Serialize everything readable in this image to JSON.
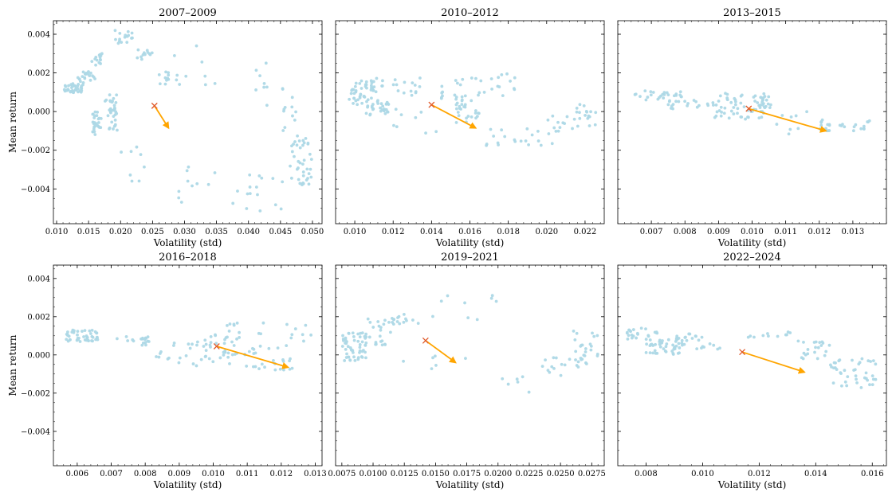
{
  "figure": {
    "ylabel_left": "Mean return",
    "colors": {
      "points": "#add8e6",
      "arrow": "#ffa500",
      "marker": "#e05a2b",
      "frame": "#000000"
    }
  },
  "chart_data": [
    {
      "type": "scatter",
      "title": "2007–2009",
      "xlabel": "Volatility (std)",
      "ylabel": "Mean return",
      "xlim": [
        0.0095,
        0.0515
      ],
      "ylim": [
        -0.0058,
        0.0047
      ],
      "xticks": [
        0.01,
        0.015,
        0.02,
        0.025,
        0.03,
        0.035,
        0.04,
        0.045,
        0.05
      ],
      "xticklabels": [
        "0.010",
        "0.015",
        "0.020",
        "0.025",
        "0.030",
        "0.035",
        "0.040",
        "0.045",
        "0.050"
      ],
      "yticks": [
        -0.004,
        -0.002,
        0.0,
        0.002,
        0.004
      ],
      "yticklabels": [
        "−0.004",
        "−0.002",
        "0.000",
        "0.002",
        "0.004"
      ],
      "clusters": [
        {
          "x": [
            0.011,
            0.013
          ],
          "y": [
            0.0009,
            0.0014
          ],
          "n": 22
        },
        {
          "x": [
            0.0125,
            0.0145
          ],
          "y": [
            0.001,
            0.0018
          ],
          "n": 18
        },
        {
          "x": [
            0.014,
            0.016
          ],
          "y": [
            0.0013,
            0.0021
          ],
          "n": 16
        },
        {
          "x": [
            0.0155,
            0.0175
          ],
          "y": [
            0.0024,
            0.003
          ],
          "n": 14
        },
        {
          "x": [
            0.0155,
            0.017
          ],
          "y": [
            -0.0012,
            0.0
          ],
          "n": 26
        },
        {
          "x": [
            0.0175,
            0.0195
          ],
          "y": [
            0.0003,
            0.0009
          ],
          "n": 12
        },
        {
          "x": [
            0.018,
            0.0195
          ],
          "y": [
            -0.001,
            0.0002
          ],
          "n": 24
        },
        {
          "x": [
            0.019,
            0.0225
          ],
          "y": [
            0.0035,
            0.0042
          ],
          "n": 16
        },
        {
          "x": [
            0.0225,
            0.025
          ],
          "y": [
            0.0027,
            0.0032
          ],
          "n": 12
        },
        {
          "x": [
            0.026,
            0.0275
          ],
          "y": [
            0.0013,
            0.0022
          ],
          "n": 10
        },
        {
          "x": [
            0.02,
            0.024
          ],
          "y": [
            -0.0037,
            -0.0018
          ],
          "n": 8
        },
        {
          "x": [
            0.028,
            0.036
          ],
          "y": [
            0.0012,
            0.0036
          ],
          "n": 10
        },
        {
          "x": [
            0.029,
            0.036
          ],
          "y": [
            -0.0048,
            -0.0023
          ],
          "n": 10
        },
        {
          "x": [
            0.037,
            0.046
          ],
          "y": [
            -0.0052,
            -0.0032
          ],
          "n": 16
        },
        {
          "x": [
            0.04,
            0.043
          ],
          "y": [
            0.0,
            0.0026
          ],
          "n": 8
        },
        {
          "x": [
            0.045,
            0.0475
          ],
          "y": [
            -0.001,
            0.0016
          ],
          "n": 12
        },
        {
          "x": [
            0.0465,
            0.05
          ],
          "y": [
            -0.0038,
            -0.0012
          ],
          "n": 40
        }
      ],
      "marker": {
        "x": 0.0253,
        "y": 0.0003
      },
      "arrow": {
        "from": [
          0.0253,
          0.0003
        ],
        "to": [
          0.0275,
          -0.00085
        ]
      }
    },
    {
      "type": "scatter",
      "title": "2010–2012",
      "xlabel": "Volatility (std)",
      "ylabel": "",
      "xlim": [
        0.009,
        0.023
      ],
      "ylim": [
        -0.0058,
        0.0047
      ],
      "xticks": [
        0.01,
        0.012,
        0.014,
        0.016,
        0.018,
        0.02,
        0.022
      ],
      "xticklabels": [
        "0.010",
        "0.012",
        "0.014",
        "0.016",
        "0.018",
        "0.020",
        "0.022"
      ],
      "yticks": [
        -0.004,
        -0.002,
        0.0,
        0.002,
        0.004
      ],
      "clusters": [
        {
          "x": [
            0.0097,
            0.011
          ],
          "y": [
            0.0002,
            0.0016
          ],
          "n": 50
        },
        {
          "x": [
            0.0105,
            0.0118
          ],
          "y": [
            -0.0002,
            0.0006
          ],
          "n": 25
        },
        {
          "x": [
            0.011,
            0.015
          ],
          "y": [
            0.0008,
            0.0018
          ],
          "n": 22
        },
        {
          "x": [
            0.012,
            0.0145
          ],
          "y": [
            -0.0012,
            0.0003
          ],
          "n": 8
        },
        {
          "x": [
            0.0145,
            0.016
          ],
          "y": [
            0.0006,
            0.0018
          ],
          "n": 14
        },
        {
          "x": [
            0.0152,
            0.0165
          ],
          "y": [
            -0.0006,
            0.0007
          ],
          "n": 25
        },
        {
          "x": [
            0.016,
            0.0185
          ],
          "y": [
            0.0008,
            0.002
          ],
          "n": 18
        },
        {
          "x": [
            0.0168,
            0.0205
          ],
          "y": [
            -0.0018,
            -0.0008
          ],
          "n": 22
        },
        {
          "x": [
            0.02,
            0.0215
          ],
          "y": [
            -0.0012,
            -0.0002
          ],
          "n": 10
        },
        {
          "x": [
            0.0215,
            0.0226
          ],
          "y": [
            -0.0008,
            0.0004
          ],
          "n": 18
        }
      ],
      "marker": {
        "x": 0.014,
        "y": 0.00035
      },
      "arrow": {
        "from": [
          0.014,
          0.00035
        ],
        "to": [
          0.0163,
          -0.00085
        ]
      }
    },
    {
      "type": "scatter",
      "title": "2013–2015",
      "xlabel": "Volatility (std)",
      "ylabel": "",
      "xlim": [
        0.006,
        0.014
      ],
      "ylim": [
        -0.0058,
        0.0047
      ],
      "xticks": [
        0.007,
        0.008,
        0.009,
        0.01,
        0.011,
        0.012,
        0.013
      ],
      "xticklabels": [
        "0.007",
        "0.008",
        "0.009",
        "0.010",
        "0.011",
        "0.012",
        "0.013"
      ],
      "yticks": [
        -0.004,
        -0.002,
        0.0,
        0.002,
        0.004
      ],
      "clusters": [
        {
          "x": [
            0.0065,
            0.008
          ],
          "y": [
            0.0006,
            0.0011
          ],
          "n": 25
        },
        {
          "x": [
            0.0075,
            0.0088
          ],
          "y": [
            0.0001,
            0.0006
          ],
          "n": 18
        },
        {
          "x": [
            0.0088,
            0.0104
          ],
          "y": [
            -0.0004,
            0.001
          ],
          "n": 60
        },
        {
          "x": [
            0.01,
            0.0106
          ],
          "y": [
            0.0002,
            0.0008
          ],
          "n": 15
        },
        {
          "x": [
            0.0105,
            0.0118
          ],
          "y": [
            -0.0012,
            0.0001
          ],
          "n": 8
        },
        {
          "x": [
            0.012,
            0.0136
          ],
          "y": [
            -0.001,
            -0.0004
          ],
          "n": 28
        }
      ],
      "marker": {
        "x": 0.0099,
        "y": 0.00015
      },
      "arrow": {
        "from": [
          0.0099,
          0.00015
        ],
        "to": [
          0.0122,
          -0.001
        ]
      }
    },
    {
      "type": "scatter",
      "title": "2016–2018",
      "xlabel": "Volatility (std)",
      "ylabel": "Mean return",
      "xlim": [
        0.0053,
        0.0132
      ],
      "ylim": [
        -0.0058,
        0.0047
      ],
      "xticks": [
        0.006,
        0.007,
        0.008,
        0.009,
        0.01,
        0.011,
        0.012,
        0.013
      ],
      "xticklabels": [
        "0.006",
        "0.007",
        "0.008",
        "0.009",
        "0.010",
        "0.011",
        "0.012",
        "0.013"
      ],
      "yticks": [
        -0.004,
        -0.002,
        0.0,
        0.002,
        0.004
      ],
      "yticklabels": [
        "−0.004",
        "−0.002",
        "0.000",
        "0.002",
        "0.004"
      ],
      "clusters": [
        {
          "x": [
            0.0056,
            0.0066
          ],
          "y": [
            0.0007,
            0.0013
          ],
          "n": 45
        },
        {
          "x": [
            0.007,
            0.0083
          ],
          "y": [
            0.0005,
            0.001
          ],
          "n": 18
        },
        {
          "x": [
            0.0083,
            0.0098
          ],
          "y": [
            -0.0005,
            0.0008
          ],
          "n": 22
        },
        {
          "x": [
            0.0095,
            0.011
          ],
          "y": [
            -0.0006,
            0.0012
          ],
          "n": 30
        },
        {
          "x": [
            0.0102,
            0.0115
          ],
          "y": [
            0.0008,
            0.0018
          ],
          "n": 14
        },
        {
          "x": [
            0.011,
            0.0124
          ],
          "y": [
            -0.0008,
            0.0005
          ],
          "n": 25
        },
        {
          "x": [
            0.012,
            0.013
          ],
          "y": [
            0.0006,
            0.0016
          ],
          "n": 8
        }
      ],
      "marker": {
        "x": 0.0101,
        "y": 0.00045
      },
      "arrow": {
        "from": [
          0.0101,
          0.00045
        ],
        "to": [
          0.0122,
          -0.00065
        ]
      }
    },
    {
      "type": "scatter",
      "title": "2019–2021",
      "xlabel": "Volatility (std)",
      "ylabel": "",
      "xlim": [
        0.007,
        0.0285
      ],
      "ylim": [
        -0.0058,
        0.0047
      ],
      "xticks": [
        0.0075,
        0.01,
        0.0125,
        0.015,
        0.0175,
        0.02,
        0.0225,
        0.025,
        0.0275
      ],
      "xticklabels": [
        "0.0075",
        "0.0100",
        "0.0125",
        "0.0150",
        "0.0175",
        "0.0200",
        "0.0225",
        "0.0250",
        "0.0275"
      ],
      "yticks": [
        -0.004,
        -0.002,
        0.0,
        0.002,
        0.004
      ],
      "clusters": [
        {
          "x": [
            0.0075,
            0.0095
          ],
          "y": [
            -0.0003,
            0.0012
          ],
          "n": 55
        },
        {
          "x": [
            0.0095,
            0.0115
          ],
          "y": [
            0.0005,
            0.0019
          ],
          "n": 22
        },
        {
          "x": [
            0.0115,
            0.0135
          ],
          "y": [
            0.0015,
            0.0022
          ],
          "n": 14
        },
        {
          "x": [
            0.0135,
            0.02
          ],
          "y": [
            0.0015,
            0.0032
          ],
          "n": 10
        },
        {
          "x": [
            0.011,
            0.018
          ],
          "y": [
            -0.001,
            0.0
          ],
          "n": 6
        },
        {
          "x": [
            0.02,
            0.023
          ],
          "y": [
            -0.002,
            -0.001
          ],
          "n": 6
        },
        {
          "x": [
            0.0235,
            0.027
          ],
          "y": [
            -0.0012,
            0.0
          ],
          "n": 18
        },
        {
          "x": [
            0.026,
            0.028
          ],
          "y": [
            -0.0005,
            0.0015
          ],
          "n": 22
        }
      ],
      "marker": {
        "x": 0.0142,
        "y": 0.00075
      },
      "arrow": {
        "from": [
          0.0142,
          0.00075
        ],
        "to": [
          0.0166,
          -0.0004
        ]
      }
    },
    {
      "type": "scatter",
      "title": "2022–2024",
      "xlabel": "Volatility (std)",
      "ylabel": "",
      "xlim": [
        0.007,
        0.0165
      ],
      "ylim": [
        -0.0058,
        0.0047
      ],
      "xticks": [
        0.008,
        0.01,
        0.012,
        0.014,
        0.016
      ],
      "xticklabels": [
        "0.008",
        "0.010",
        "0.012",
        "0.014",
        "0.016"
      ],
      "yticks": [
        -0.004,
        -0.002,
        0.0,
        0.002,
        0.004
      ],
      "clusters": [
        {
          "x": [
            0.0073,
            0.0085
          ],
          "y": [
            0.0007,
            0.0014
          ],
          "n": 25
        },
        {
          "x": [
            0.008,
            0.0093
          ],
          "y": [
            0.0,
            0.0009
          ],
          "n": 40
        },
        {
          "x": [
            0.009,
            0.01
          ],
          "y": [
            0.0003,
            0.0011
          ],
          "n": 20
        },
        {
          "x": [
            0.01,
            0.011
          ],
          "y": [
            0.0003,
            0.0006
          ],
          "n": 6
        },
        {
          "x": [
            0.0115,
            0.0135
          ],
          "y": [
            0.0006,
            0.0012
          ],
          "n": 12
        },
        {
          "x": [
            0.0135,
            0.0145
          ],
          "y": [
            -0.0002,
            0.0007
          ],
          "n": 20
        },
        {
          "x": [
            0.0145,
            0.0162
          ],
          "y": [
            -0.0018,
            -0.0002
          ],
          "n": 40
        }
      ],
      "marker": {
        "x": 0.0114,
        "y": 0.00015
      },
      "arrow": {
        "from": [
          0.0114,
          0.00015
        ],
        "to": [
          0.0136,
          -0.0009
        ]
      }
    }
  ]
}
